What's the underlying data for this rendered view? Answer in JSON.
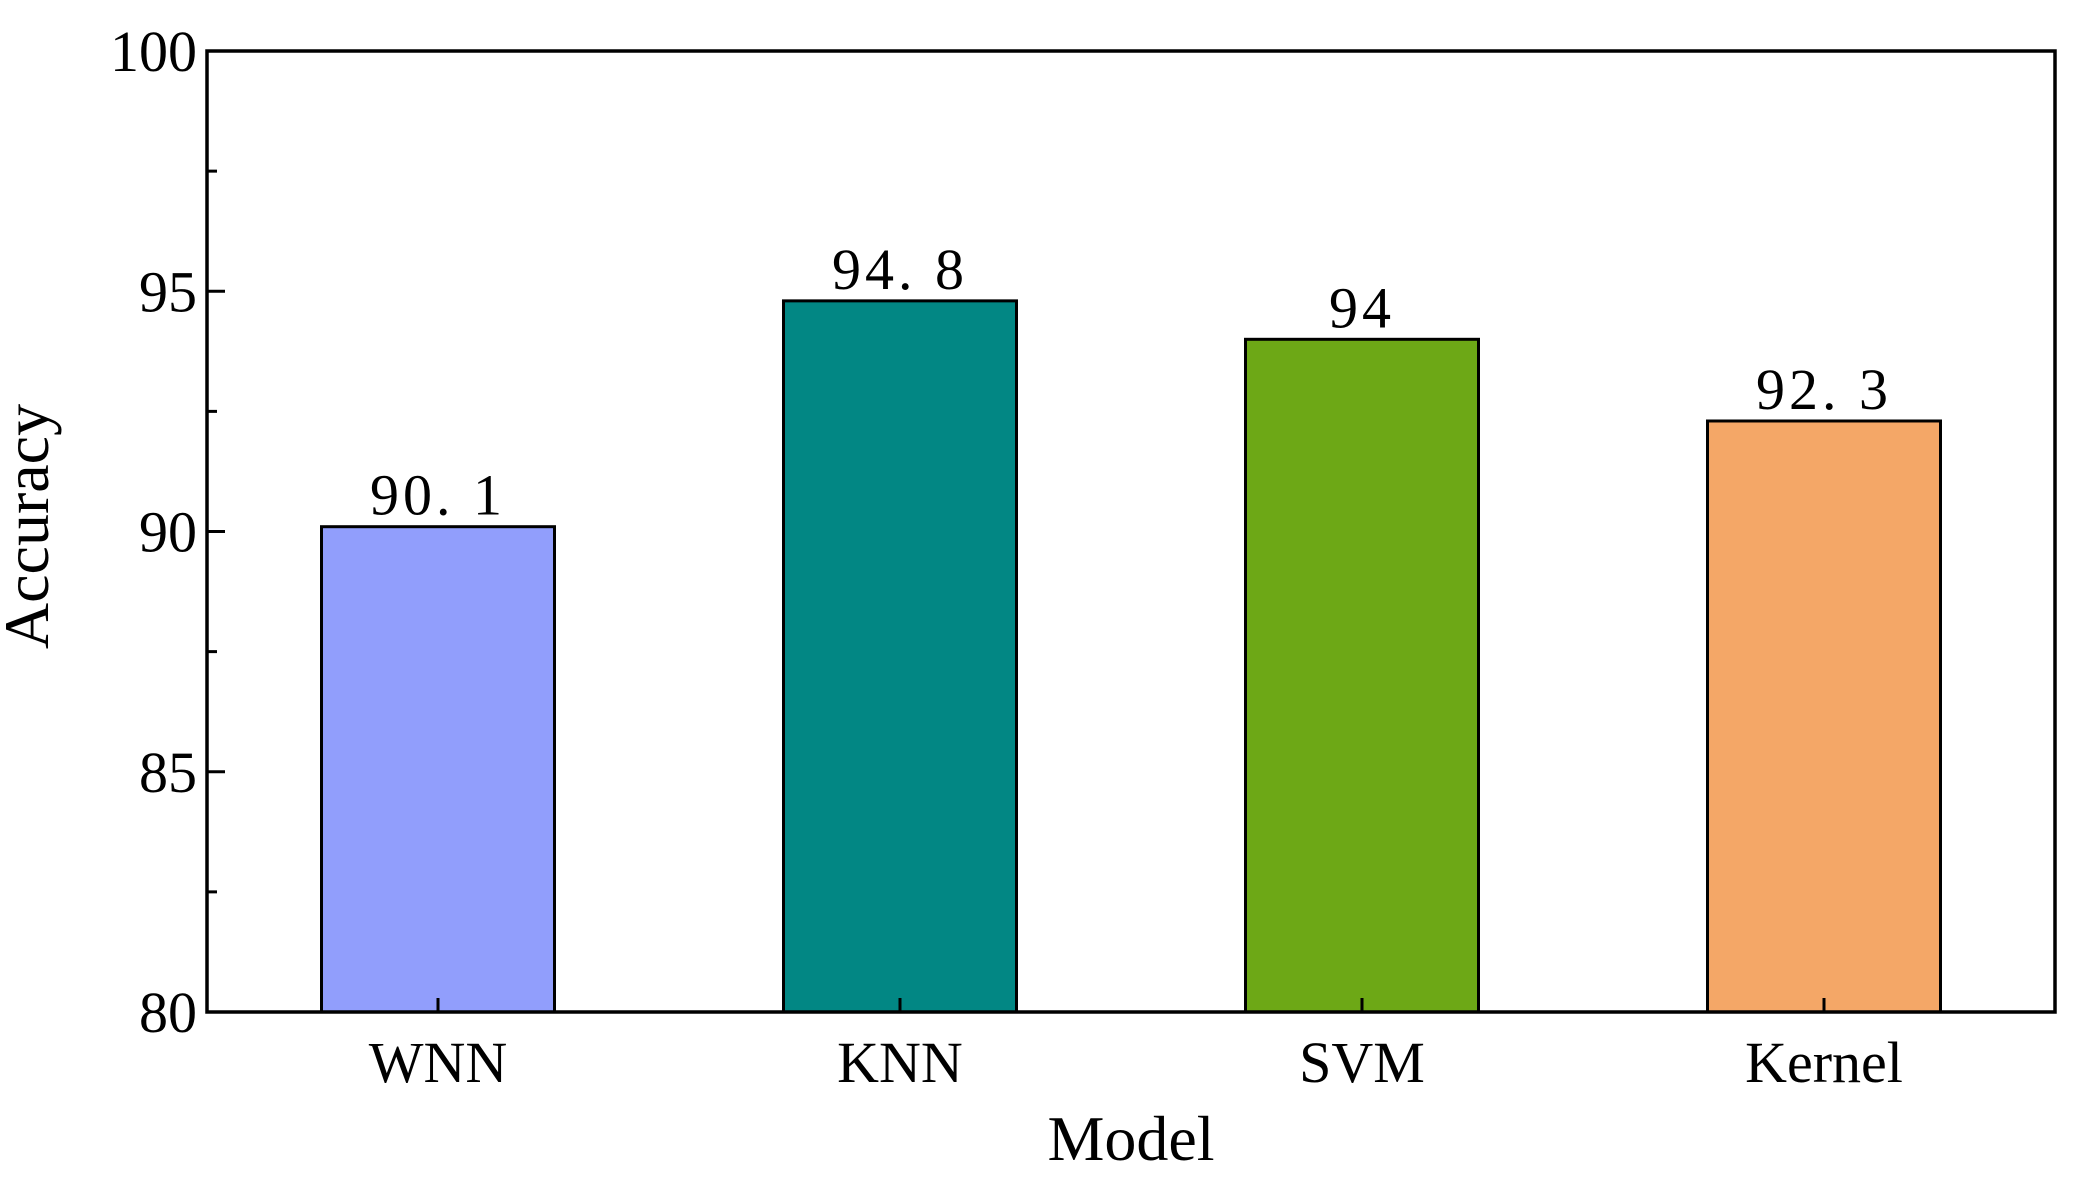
{
  "chart_data": {
    "type": "bar",
    "title": "",
    "xlabel": "Model",
    "ylabel": "Accuracy",
    "categories": [
      "WNN",
      "KNN",
      "SVM",
      "Kernel"
    ],
    "values": [
      90.1,
      94.8,
      94,
      92.3
    ],
    "value_labels": [
      "90. 1",
      "94. 8",
      "94",
      "92. 3"
    ],
    "colors": [
      "#919EFC",
      "#028784",
      "#6DA816",
      "#F4A767"
    ],
    "ylim": [
      80,
      100
    ],
    "yticks": [
      80,
      85,
      90,
      95,
      100
    ],
    "y_minor_ticks": [
      82.5,
      87.5,
      92.5,
      97.5
    ],
    "grid": false,
    "legend": "none"
  }
}
